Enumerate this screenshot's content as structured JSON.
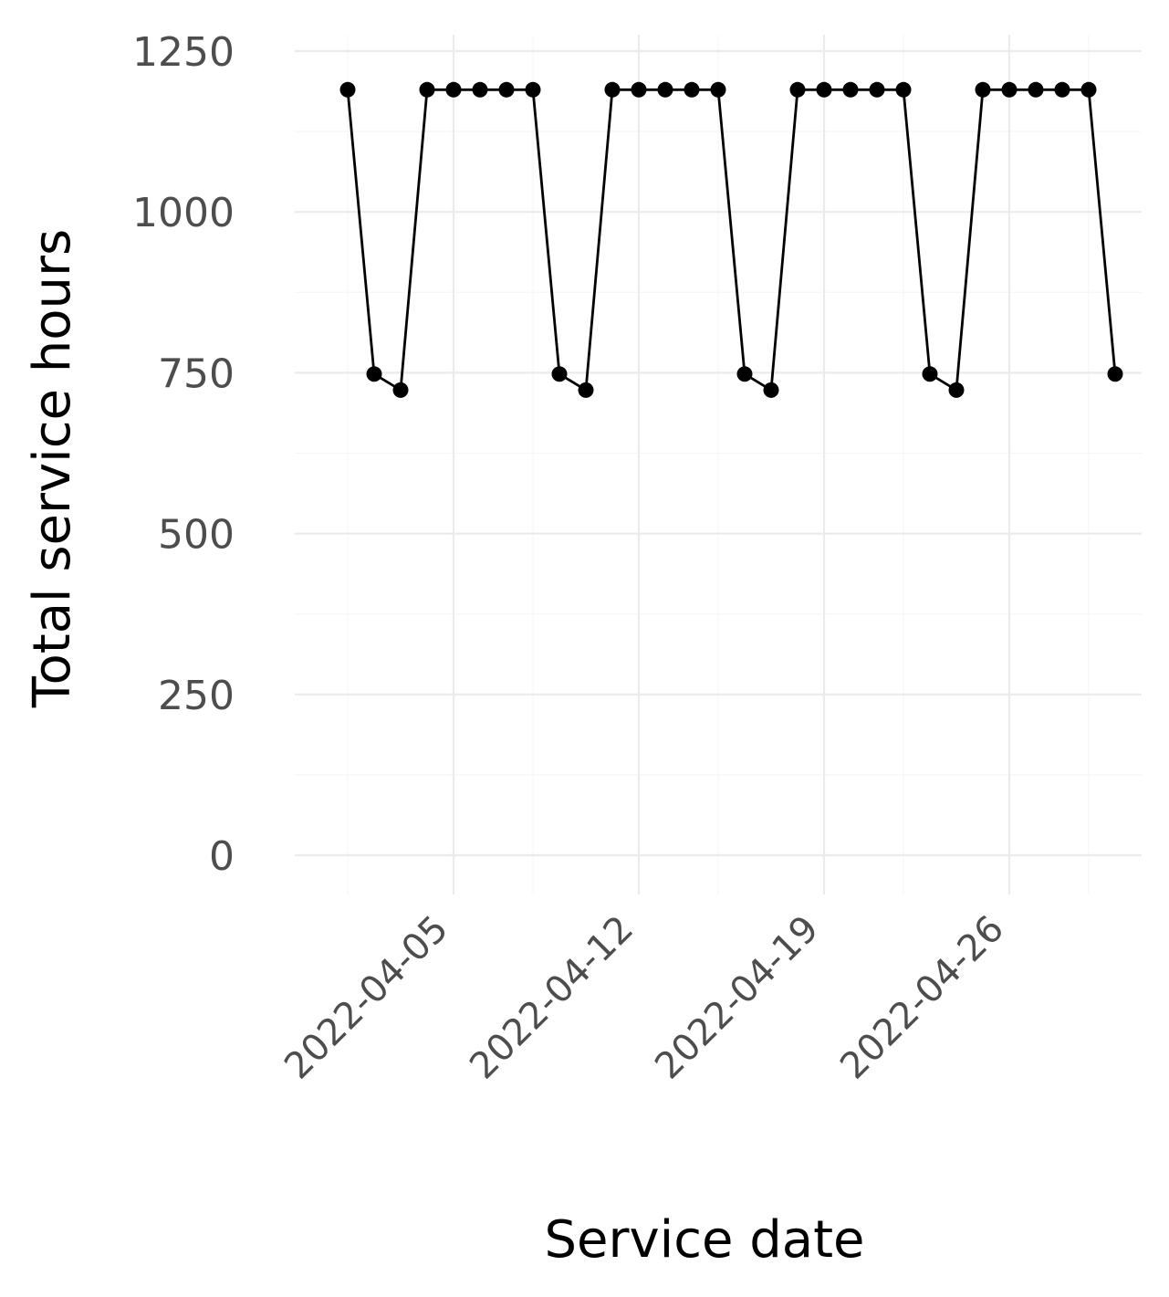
{
  "chart_data": {
    "type": "line",
    "title": "",
    "xlabel": "Service date",
    "ylabel": "Total service hours",
    "x_type": "date",
    "xlim": [
      "2022-03-30",
      "2022-05-01"
    ],
    "ylim": [
      -60,
      1250
    ],
    "y_ticks": [
      0,
      250,
      500,
      750,
      1000,
      1250
    ],
    "x_ticks": [
      "2022-04-05",
      "2022-04-12",
      "2022-04-19",
      "2022-04-26"
    ],
    "x_minor_ticks": [
      "2022-04-01",
      "2022-04-08",
      "2022-04-15",
      "2022-04-22",
      "2022-04-29"
    ],
    "grid": true,
    "legend": "none",
    "line_color": "#000000",
    "series": [
      {
        "x": [
          "2022-04-01",
          "2022-04-02",
          "2022-04-03",
          "2022-04-04",
          "2022-04-05",
          "2022-04-06",
          "2022-04-07",
          "2022-04-08",
          "2022-04-09",
          "2022-04-10",
          "2022-04-11",
          "2022-04-12",
          "2022-04-13",
          "2022-04-14",
          "2022-04-15",
          "2022-04-16",
          "2022-04-17",
          "2022-04-18",
          "2022-04-19",
          "2022-04-20",
          "2022-04-21",
          "2022-04-22",
          "2022-04-23",
          "2022-04-24",
          "2022-04-25",
          "2022-04-26",
          "2022-04-27",
          "2022-04-28",
          "2022-04-29",
          "2022-04-30"
        ],
        "values": [
          1190,
          748,
          723,
          1190,
          1190,
          1190,
          1190,
          1190,
          748,
          723,
          1190,
          1190,
          1190,
          1190,
          1190,
          748,
          723,
          1190,
          1190,
          1190,
          1190,
          1190,
          748,
          723,
          1190,
          1190,
          1190,
          1190,
          1190,
          748
        ]
      }
    ]
  }
}
